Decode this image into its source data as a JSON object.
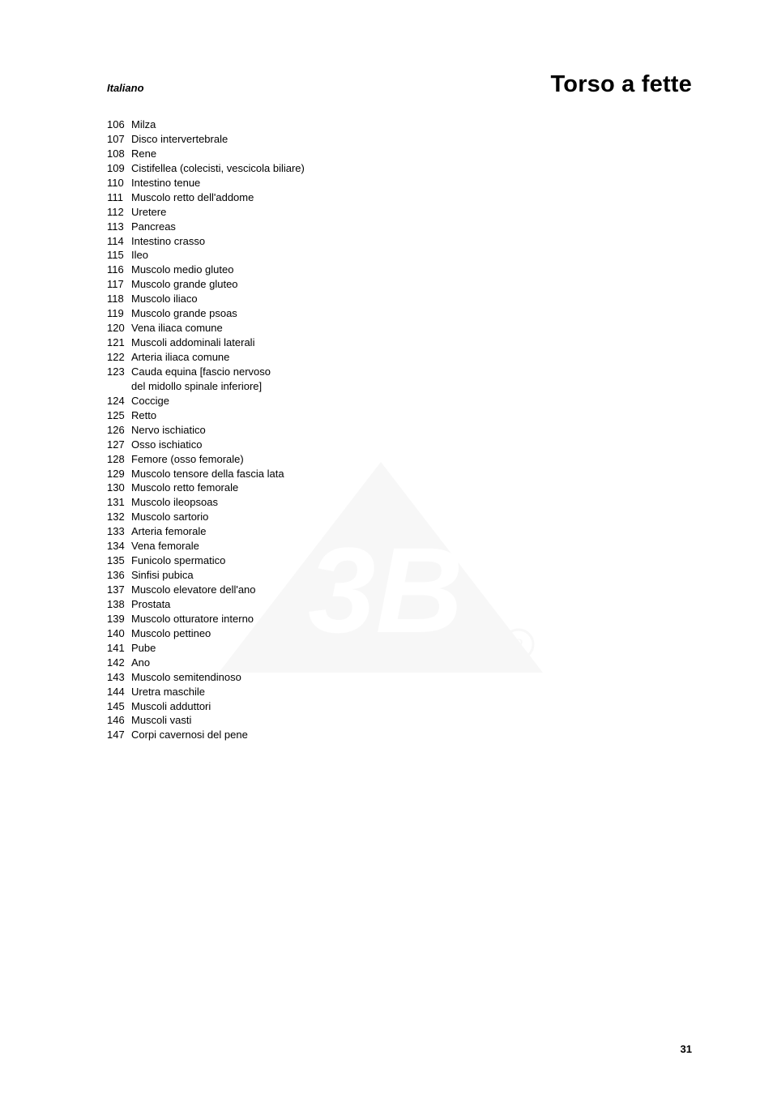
{
  "header": {
    "language_label": "Italiano",
    "title": "Torso a fette"
  },
  "page_number": "31",
  "list": {
    "start": 106,
    "items": [
      {
        "n": 106,
        "t": "Milza"
      },
      {
        "n": 107,
        "t": "Disco intervertebrale"
      },
      {
        "n": 108,
        "t": "Rene"
      },
      {
        "n": 109,
        "t": "Cistifellea (colecisti, vescicola biliare)"
      },
      {
        "n": 110,
        "t": "Intestino tenue"
      },
      {
        "n": 111,
        "t": "Muscolo retto dell'addome"
      },
      {
        "n": 112,
        "t": "Uretere"
      },
      {
        "n": 113,
        "t": "Pancreas"
      },
      {
        "n": 114,
        "t": "Intestino crasso"
      },
      {
        "n": 115,
        "t": "Ileo"
      },
      {
        "n": 116,
        "t": "Muscolo medio gluteo"
      },
      {
        "n": 117,
        "t": "Muscolo grande gluteo"
      },
      {
        "n": 118,
        "t": "Muscolo iliaco"
      },
      {
        "n": 119,
        "t": "Muscolo grande psoas"
      },
      {
        "n": 120,
        "t": "Vena iliaca comune"
      },
      {
        "n": 121,
        "t": "Muscoli addominali laterali"
      },
      {
        "n": 122,
        "t": "Arteria iliaca comune"
      },
      {
        "n": 123,
        "t": "Cauda equina [fascio nervoso\ndel midollo spinale inferiore]"
      },
      {
        "n": 124,
        "t": "Coccige"
      },
      {
        "n": 125,
        "t": "Retto"
      },
      {
        "n": 126,
        "t": "Nervo ischiatico"
      },
      {
        "n": 127,
        "t": "Osso ischiatico"
      },
      {
        "n": 128,
        "t": "Femore (osso femorale)"
      },
      {
        "n": 129,
        "t": "Muscolo tensore della fascia lata"
      },
      {
        "n": 130,
        "t": "Muscolo retto femorale"
      },
      {
        "n": 131,
        "t": "Muscolo ileopsoas"
      },
      {
        "n": 132,
        "t": "Muscolo sartorio"
      },
      {
        "n": 133,
        "t": "Arteria femorale"
      },
      {
        "n": 134,
        "t": "Vena femorale"
      },
      {
        "n": 135,
        "t": "Funicolo spermatico"
      },
      {
        "n": 136,
        "t": "Sinfisi pubica"
      },
      {
        "n": 137,
        "t": "Muscolo elevatore dell'ano"
      },
      {
        "n": 138,
        "t": "Prostata"
      },
      {
        "n": 139,
        "t": "Muscolo otturatore interno"
      },
      {
        "n": 140,
        "t": "Muscolo pettineo"
      },
      {
        "n": 141,
        "t": "Pube"
      },
      {
        "n": 142,
        "t": "Ano"
      },
      {
        "n": 143,
        "t": "Muscolo semitendinoso"
      },
      {
        "n": 144,
        "t": "Uretra maschile"
      },
      {
        "n": 145,
        "t": "Muscoli adduttori"
      },
      {
        "n": 146,
        "t": "Muscoli vasti"
      },
      {
        "n": 147,
        "t": "Corpi cavernosi del pene"
      }
    ]
  },
  "watermark": {
    "fill": "#808080"
  },
  "style": {
    "page_bg": "#ffffff",
    "text_color": "#000000",
    "lang_fontsize": 13,
    "title_fontsize": 29,
    "list_fontsize": 13,
    "pagenum_fontsize": 13
  }
}
